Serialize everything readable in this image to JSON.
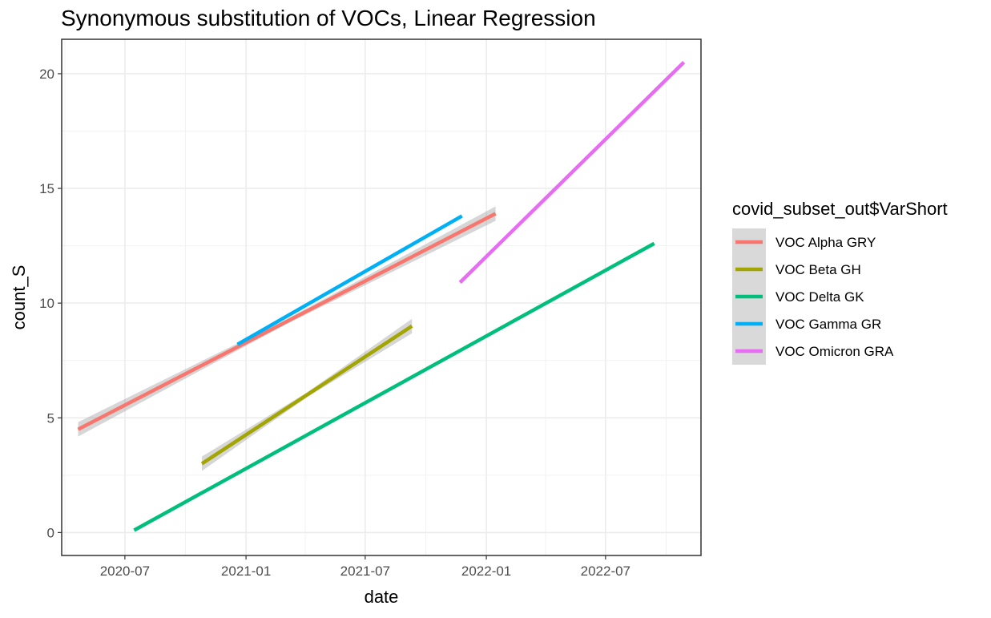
{
  "chart_data": {
    "type": "line",
    "title": "Synonymous substitution of VOCs, Linear Regression",
    "xlabel": "date",
    "ylabel": "count_S",
    "x_ticks": [
      "2020-07",
      "2021-01",
      "2021-07",
      "2022-01",
      "2022-07"
    ],
    "y_ticks": [
      0,
      5,
      10,
      15,
      20
    ],
    "xlim": [
      "2020-03-27",
      "2022-11-23"
    ],
    "ylim": [
      -1.0,
      21.5
    ],
    "grid": true,
    "legend": {
      "title": "covid_subset_out$VarShort",
      "position": "right"
    },
    "series": [
      {
        "name": "VOC Alpha GRY",
        "color": "#F8766D",
        "confidence_band": true,
        "points": [
          {
            "x": "2020-04-21",
            "y": 4.5
          },
          {
            "x": "2022-01-15",
            "y": 13.9
          }
        ]
      },
      {
        "name": "VOC Beta GH",
        "color": "#A3A500",
        "confidence_band": true,
        "points": [
          {
            "x": "2020-10-26",
            "y": 3.0
          },
          {
            "x": "2021-09-10",
            "y": 9.0
          }
        ]
      },
      {
        "name": "VOC Delta GK",
        "color": "#00BF7D",
        "confidence_band": false,
        "points": [
          {
            "x": "2020-07-15",
            "y": 0.1
          },
          {
            "x": "2022-09-13",
            "y": 12.6
          }
        ]
      },
      {
        "name": "VOC Gamma GR",
        "color": "#00B0F6",
        "confidence_band": false,
        "points": [
          {
            "x": "2020-12-19",
            "y": 8.2
          },
          {
            "x": "2021-11-25",
            "y": 13.8
          }
        ]
      },
      {
        "name": "VOC Omicron GRA",
        "color": "#E76BF3",
        "confidence_band": false,
        "points": [
          {
            "x": "2021-11-22",
            "y": 10.9
          },
          {
            "x": "2022-10-28",
            "y": 20.5
          }
        ]
      }
    ]
  }
}
